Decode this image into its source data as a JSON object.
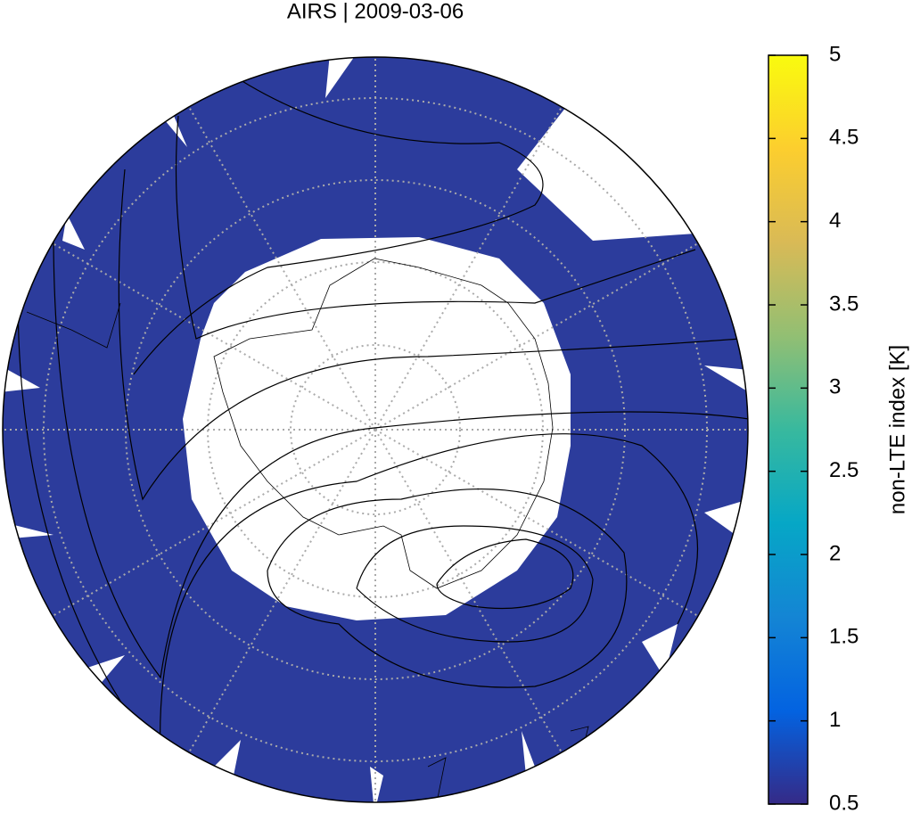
{
  "map": {
    "title": "AIRS | 2009-03-06",
    "colorbar": {
      "label": "non-LTE index [K]",
      "lim": [
        0.5,
        5
      ],
      "ticks": [
        0.5,
        1,
        1.5,
        2,
        2.5,
        3,
        3.5,
        4,
        4.5,
        5
      ]
    }
  }
}
